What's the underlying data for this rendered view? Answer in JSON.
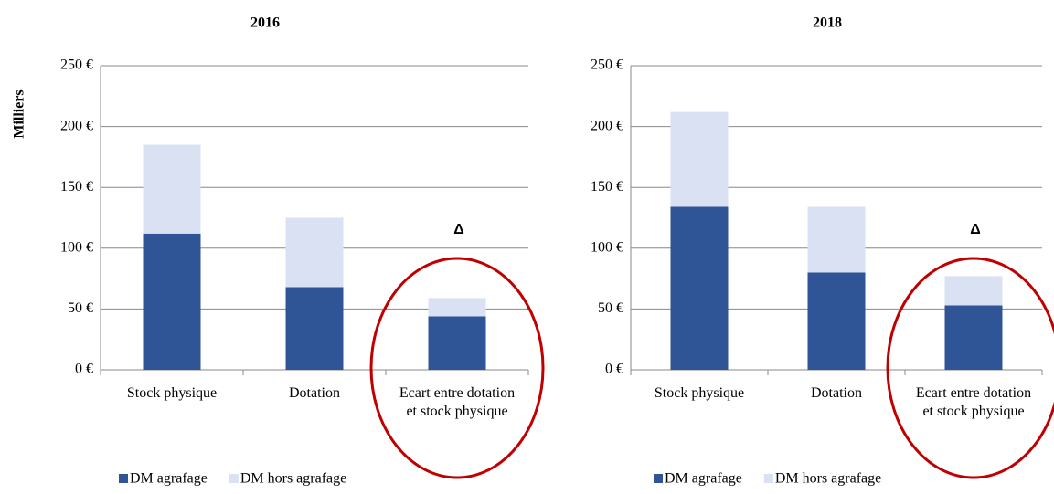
{
  "chart_data": [
    {
      "type": "bar",
      "stacked": true,
      "title": "2016",
      "ylabel": "Milliers",
      "annotation": "Δ",
      "categories": [
        "Stock physique",
        "Dotation",
        "Ecart entre dotation et stock physique"
      ],
      "series": [
        {
          "name": "DM agrafage",
          "color": "#2f5597",
          "values": [
            112,
            68,
            44
          ]
        },
        {
          "name": "DM hors agrafage",
          "color": "#d9e1f2",
          "values": [
            73,
            57,
            15
          ]
        }
      ],
      "ylim": [
        0,
        250
      ],
      "yticks": [
        {
          "value": 0,
          "label": "0 €"
        },
        {
          "value": 50,
          "label": "50 €"
        },
        {
          "value": 100,
          "label": "100 €"
        },
        {
          "value": 150,
          "label": "150 €"
        },
        {
          "value": 200,
          "label": "200 €"
        },
        {
          "value": 250,
          "label": "250 €"
        }
      ],
      "grid": true
    },
    {
      "type": "bar",
      "stacked": true,
      "title": "2018",
      "annotation": "Δ",
      "categories": [
        "Stock physique",
        "Dotation",
        "Ecart entre dotation et stock physique"
      ],
      "series": [
        {
          "name": "DM agrafage",
          "color": "#2f5597",
          "values": [
            134,
            80,
            53
          ]
        },
        {
          "name": "DM hors agrafage",
          "color": "#d9e1f2",
          "values": [
            78,
            54,
            24
          ]
        }
      ],
      "ylim": [
        0,
        250
      ],
      "yticks": [
        {
          "value": 0,
          "label": "0 €"
        },
        {
          "value": 50,
          "label": "50 €"
        },
        {
          "value": 100,
          "label": "100 €"
        },
        {
          "value": 150,
          "label": "150 €"
        },
        {
          "value": 200,
          "label": "200 €"
        },
        {
          "value": 250,
          "label": "250 €"
        }
      ],
      "grid": true
    }
  ]
}
